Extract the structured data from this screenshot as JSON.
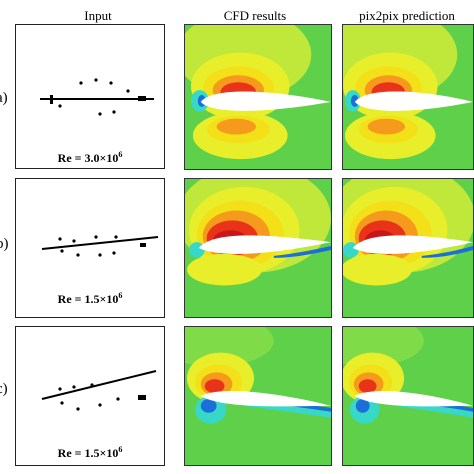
{
  "columns": {
    "input": "Input",
    "cfd": "CFD results",
    "pix2pix": "pix2pix prediction"
  },
  "rows": [
    {
      "label": "a)",
      "re_prefix": "Re = 3.0×10",
      "re_exp": "6"
    },
    {
      "label": "b)",
      "re_prefix": "Re = 1.5×10",
      "re_exp": "6"
    },
    {
      "label": "c)",
      "re_prefix": "Re = 1.5×10",
      "re_exp": "6"
    }
  ],
  "colors": {
    "background_field": "#5fd04a",
    "light_yellow": "#e8ef2a",
    "yellow": "#f4e018",
    "orange": "#f59a1c",
    "red": "#e8321a",
    "dark_red": "#c8141a",
    "cyan": "#38d8c8",
    "blue": "#1a6fd8",
    "airfoil": "#ffffff"
  }
}
